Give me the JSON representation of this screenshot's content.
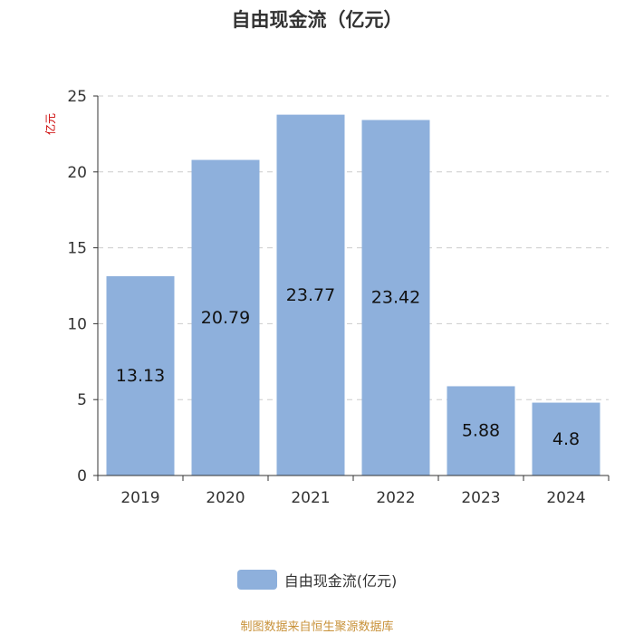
{
  "chart_data": {
    "type": "bar",
    "title": "自由现金流（亿元）",
    "ylabel": "亿元",
    "categories": [
      "2019",
      "2020",
      "2021",
      "2022",
      "2023",
      "2024"
    ],
    "series": [
      {
        "name": "自由现金流(亿元)",
        "values": [
          13.13,
          20.79,
          23.77,
          23.42,
          5.88,
          4.8
        ]
      }
    ],
    "data_labels": [
      "13.13",
      "20.79",
      "23.77",
      "23.42",
      "5.88",
      "4.8"
    ],
    "yticks": [
      "0",
      "5",
      "10",
      "15",
      "20",
      "25"
    ],
    "ylim": [
      0,
      25
    ],
    "grid": true,
    "legend_position": "bottom"
  },
  "source": "制图数据来自恒生聚源数据库",
  "colors": {
    "bar": "#8eb0dc",
    "ylabel": "#cc0000",
    "source": "#c8923a",
    "axis": "#333333",
    "grid": "#cccccc"
  }
}
